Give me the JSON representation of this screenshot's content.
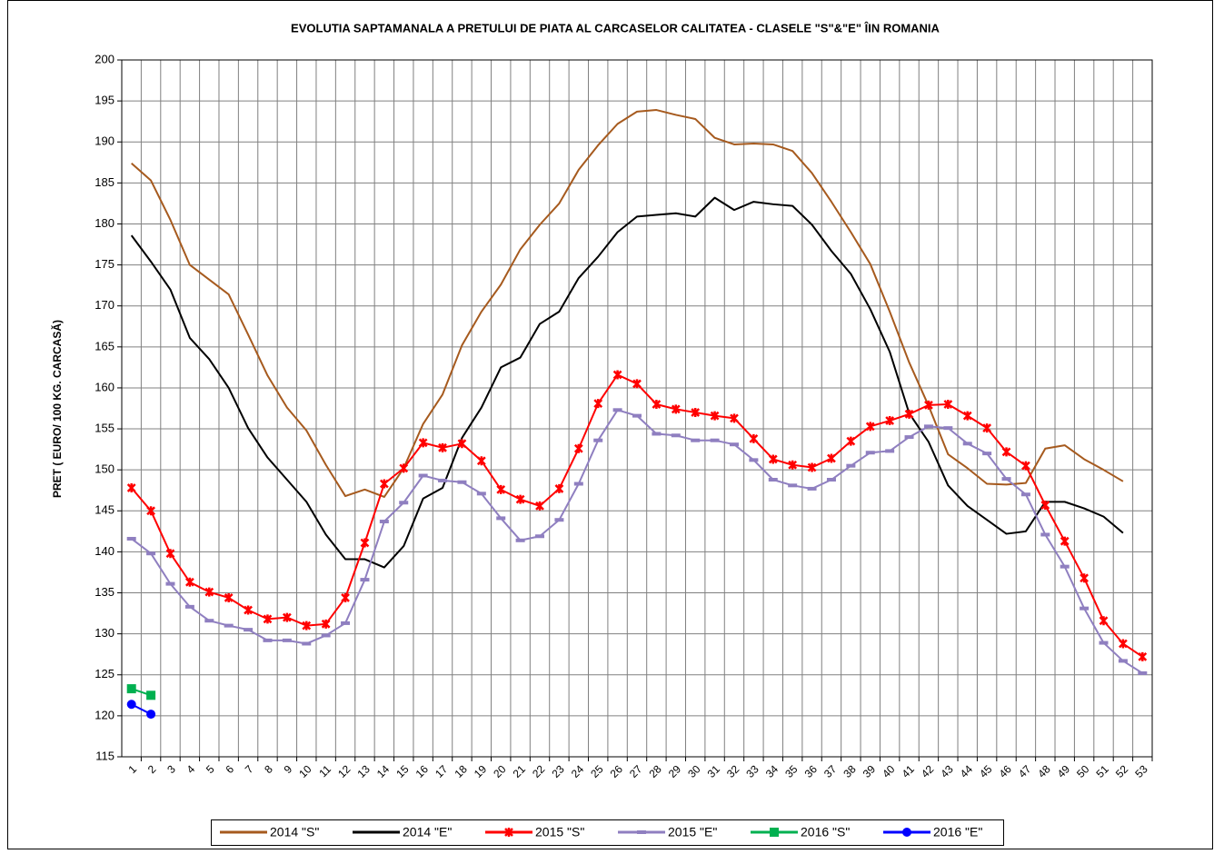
{
  "chart_data": {
    "type": "line",
    "title": "EVOLUTIA SAPTAMANALA  A PRETULUI  DE PIATA  AL CARCASELOR  CALITATEA  - CLASELE \"S\"&\"E\"  ÎIN ROMANIA",
    "y_label": "PRET ( EURO/ 100 KG. CARCASĂ)",
    "categories": [
      "1",
      "2",
      "3",
      "4",
      "5",
      "6",
      "7",
      "8",
      "9",
      "10",
      "11",
      "12",
      "13",
      "14",
      "15",
      "16",
      "17",
      "18",
      "19",
      "20",
      "21",
      "22",
      "23",
      "24",
      "25",
      "26",
      "27",
      "28",
      "29",
      "30",
      "31",
      "32",
      "33",
      "34",
      "35",
      "36",
      "37",
      "38",
      "39",
      "40",
      "41",
      "42",
      "43",
      "44",
      "45",
      "46",
      "47",
      "48",
      "49",
      "50",
      "51",
      "52",
      "53"
    ],
    "ylim": [
      115,
      200
    ],
    "yticks": [
      115,
      120,
      125,
      130,
      135,
      140,
      145,
      150,
      155,
      160,
      165,
      170,
      175,
      180,
      185,
      190,
      195,
      200
    ],
    "grid": true,
    "legend": "bottom",
    "series": [
      {
        "name": "2014 \"S\"",
        "color": "#a65a1e",
        "marker": "none",
        "values": [
          187.4,
          185.3,
          180.5,
          175,
          173.2,
          171.4,
          166.5,
          161.5,
          157.6,
          154.8,
          150.6,
          146.8,
          147.6,
          146.7,
          150.2,
          155.6,
          159.2,
          165.2,
          169.3,
          172.6,
          176.9,
          179.9,
          182.5,
          186.6,
          189.6,
          192.2,
          193.7,
          193.9,
          193.3,
          192.8,
          190.5,
          189.7,
          189.8,
          189.7,
          188.9,
          186.2,
          182.7,
          179,
          175.1,
          169.3,
          163.1,
          157.8,
          151.9,
          150.2,
          148.3,
          148.2,
          148.4,
          152.6,
          153,
          151.3,
          150,
          148.6,
          null
        ]
      },
      {
        "name": "2014 \"E\"",
        "color": "#000000",
        "marker": "none",
        "values": [
          178.6,
          175.4,
          172,
          166.1,
          163.5,
          160,
          155.1,
          151.5,
          148.8,
          146.1,
          142.1,
          139.1,
          139.1,
          138.1,
          140.7,
          146.5,
          147.8,
          153.9,
          157.6,
          162.5,
          163.7,
          167.8,
          169.3,
          173.4,
          176,
          179,
          180.9,
          181.1,
          181.3,
          180.9,
          183.2,
          181.7,
          182.7,
          182.4,
          182.2,
          179.9,
          176.7,
          173.9,
          169.6,
          164.4,
          156.9,
          153.4,
          148.1,
          145.6,
          143.9,
          142.2,
          142.5,
          146.1,
          146.1,
          145.3,
          144.3,
          142.3,
          null
        ]
      },
      {
        "name": "2015 \"S\"",
        "color": "#ff0000",
        "marker": "star",
        "values": [
          147.8,
          145,
          139.8,
          136.3,
          135.1,
          134.4,
          132.9,
          131.8,
          132,
          131,
          131.2,
          134.4,
          141.1,
          148.3,
          150.2,
          153.3,
          152.7,
          153.2,
          151.1,
          147.6,
          146.4,
          145.6,
          147.7,
          152.6,
          158.1,
          161.6,
          160.5,
          158,
          157.4,
          157,
          156.6,
          156.3,
          153.8,
          151.3,
          150.6,
          150.3,
          151.4,
          153.5,
          155.3,
          156,
          156.8,
          157.9,
          158,
          156.6,
          155.1,
          152.2,
          150.5,
          145.7,
          141.3,
          136.8,
          131.6,
          128.8,
          127.2
        ]
      },
      {
        "name": "2015 \"E\"",
        "color": "#8f7fc0",
        "marker": "dash",
        "values": [
          141.6,
          139.8,
          136.1,
          133.3,
          131.6,
          131,
          130.5,
          129.2,
          129.2,
          128.8,
          129.8,
          131.3,
          136.6,
          143.7,
          146,
          149.3,
          148.7,
          148.5,
          147.1,
          144.1,
          141.4,
          141.9,
          143.9,
          148.3,
          153.6,
          157.3,
          156.6,
          154.4,
          154.2,
          153.6,
          153.6,
          153.1,
          151.2,
          148.8,
          148.1,
          147.7,
          148.8,
          150.5,
          152.1,
          152.3,
          154,
          155.3,
          155.1,
          153.2,
          152,
          148.9,
          147,
          142.1,
          138.2,
          133.1,
          128.9,
          126.7,
          125.2
        ]
      },
      {
        "name": "2016 \"S\"",
        "color": "#00b050",
        "marker": "square",
        "values": [
          123.3,
          122.5,
          null,
          null,
          null,
          null,
          null,
          null,
          null,
          null,
          null,
          null,
          null,
          null,
          null,
          null,
          null,
          null,
          null,
          null,
          null,
          null,
          null,
          null,
          null,
          null,
          null,
          null,
          null,
          null,
          null,
          null,
          null,
          null,
          null,
          null,
          null,
          null,
          null,
          null,
          null,
          null,
          null,
          null,
          null,
          null,
          null,
          null,
          null,
          null,
          null,
          null,
          null
        ]
      },
      {
        "name": "2016 \"E\"",
        "color": "#0000ff",
        "marker": "circle",
        "values": [
          121.4,
          120.2,
          null,
          null,
          null,
          null,
          null,
          null,
          null,
          null,
          null,
          null,
          null,
          null,
          null,
          null,
          null,
          null,
          null,
          null,
          null,
          null,
          null,
          null,
          null,
          null,
          null,
          null,
          null,
          null,
          null,
          null,
          null,
          null,
          null,
          null,
          null,
          null,
          null,
          null,
          null,
          null,
          null,
          null,
          null,
          null,
          null,
          null,
          null,
          null,
          null,
          null,
          null
        ]
      }
    ]
  }
}
